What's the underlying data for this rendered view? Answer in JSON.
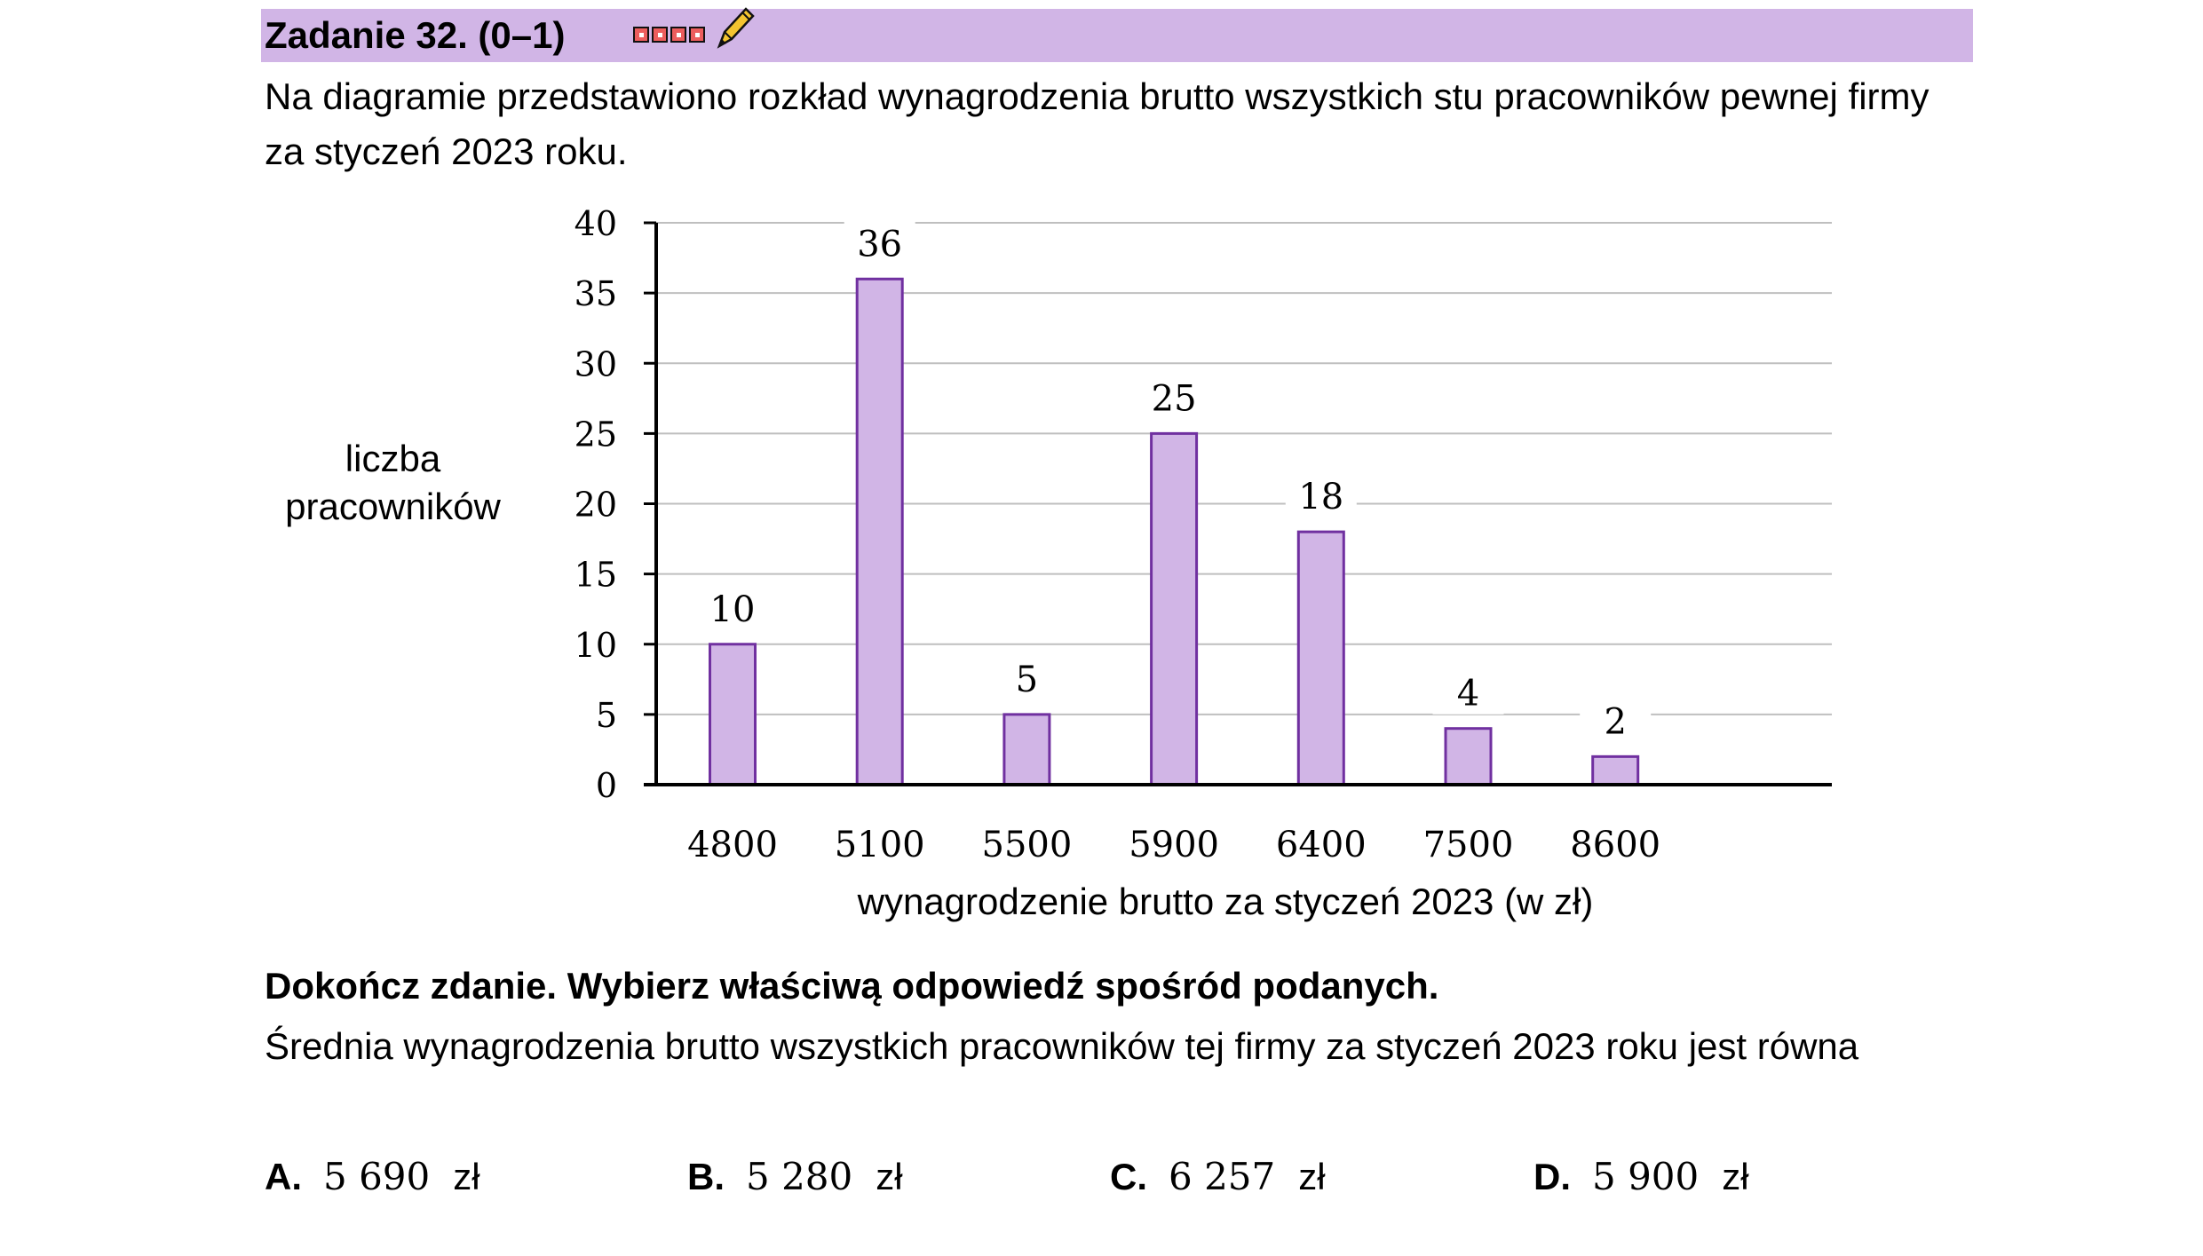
{
  "header": {
    "task_title": "Zadanie 32. (0–1)",
    "difficulty_icon": "difficulty-squares-icon",
    "edit_icon": "pencil-icon",
    "accent_color": "#d1b5e6"
  },
  "intro_text": "Na diagramie przedstawiono rozkład wynagrodzenia brutto wszystkich stu pracowników pewnej firmy za styczeń 2023 roku.",
  "chart_data": {
    "type": "bar",
    "title": "",
    "categories": [
      "4800",
      "5100",
      "5500",
      "5900",
      "6400",
      "7500",
      "8600"
    ],
    "values": [
      10,
      36,
      5,
      25,
      18,
      4,
      2
    ],
    "data_labels": [
      "10",
      "36",
      "5",
      "25",
      "18",
      "4",
      "2"
    ],
    "yticks": [
      0,
      5,
      10,
      15,
      20,
      25,
      30,
      35,
      40
    ],
    "ylim": [
      0,
      40
    ],
    "xlabel": "wynagrodzenie brutto za styczeń 2023 (w zł)",
    "ylabel_lines": [
      "liczba",
      "pracowników"
    ],
    "grid": true,
    "bar_fill": "#d1b5e6",
    "bar_stroke": "#7030a0"
  },
  "instruction": "Dokończ zdanie. Wybierz właściwą odpowiedź spośród podanych.",
  "question": "Średnia wynagrodzenia brutto wszystkich pracowników tej firmy za styczeń 2023 roku jest równa",
  "options": [
    {
      "letter": "A.",
      "value": "5 690",
      "unit": "zł"
    },
    {
      "letter": "B.",
      "value": "5 280",
      "unit": "zł"
    },
    {
      "letter": "C.",
      "value": "6 257",
      "unit": "zł"
    },
    {
      "letter": "D.",
      "value": "5 900",
      "unit": "zł"
    }
  ]
}
